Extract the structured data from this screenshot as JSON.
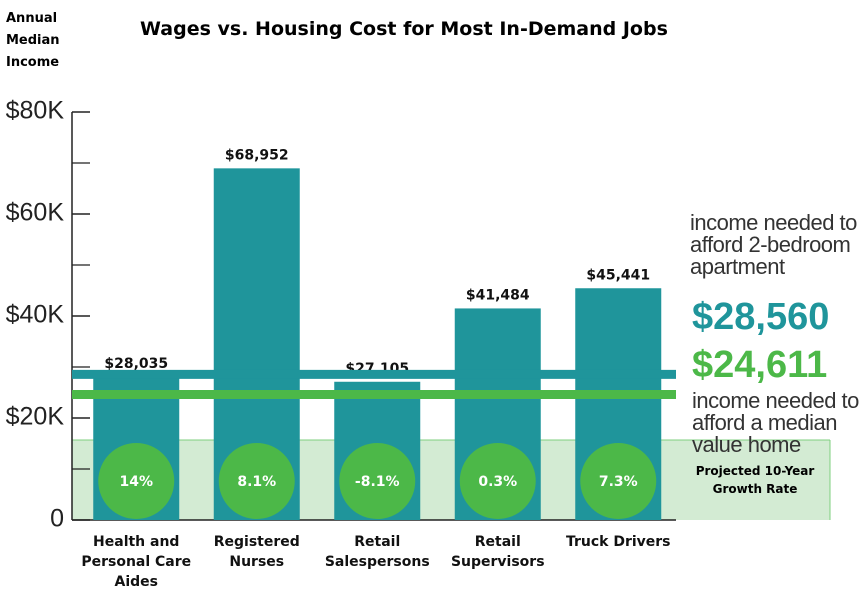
{
  "chart_data": {
    "type": "bar",
    "title": "Wages vs. Housing Cost for Most In-Demand Jobs",
    "y_label": "Annual Median Income",
    "categories": [
      "Health and Personal Care Aides",
      "Registered Nurses",
      "Retail Salespersons",
      "Retail Supervisors",
      "Truck Drivers"
    ],
    "values": [
      28035,
      68952,
      27105,
      41484,
      45441
    ],
    "value_labels": [
      "$28,035",
      "$68,952",
      "$27,105",
      "$41,484",
      "$45,441"
    ],
    "color": "#1f959b",
    "growth_title": "Projected 10-Year Growth Rate",
    "growth_rates": [
      "14%",
      "8.1%",
      "-8.1%",
      "0.3%",
      "7.3%"
    ],
    "reference_lines": [
      {
        "value": 28560,
        "label": "$28,560",
        "description": "income needed to afford 2-bedroom apartment",
        "color": "#1f959b"
      },
      {
        "value": 24611,
        "label": "$24,611",
        "description": "income needed to afford a median value home",
        "color": "#4cb848"
      }
    ],
    "ylim": [
      0,
      80000
    ],
    "yticks": [
      0,
      {
        "value": 20000,
        "label": "$20K"
      },
      {
        "value": 40000,
        "label": "$40K"
      },
      {
        "value": 60000,
        "label": "$60K"
      },
      {
        "value": 80000,
        "label": "$80K"
      }
    ],
    "minor_yticks": [
      10000,
      30000,
      50000,
      70000
    ]
  }
}
